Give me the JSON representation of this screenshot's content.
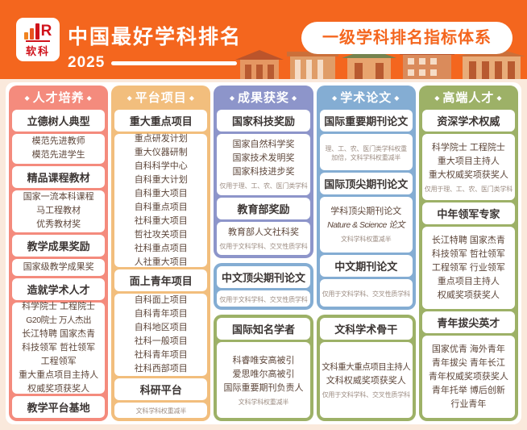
{
  "page": {
    "bg": "#FAE9DC",
    "panel_bg": "#FFFFFF"
  },
  "header": {
    "bg": "#F4661E",
    "accent": "#F4661E",
    "logo_brand": "软科",
    "logo_letter": "R",
    "title": "中国最好学科排名",
    "year": "2025",
    "badge": "一级学科排名指标体系"
  },
  "icons": {
    "diamond": "◆",
    "logo": "bar-chart-R-logo",
    "buildings": "campus-buildings-illustration"
  },
  "themes": {
    "salmon": "#F48B7D",
    "tan": "#F2BE7D",
    "purple": "#8D95CA",
    "blue": "#84ADD3",
    "green": "#9DB167"
  },
  "columns": [
    {
      "id": "talent-cultivation",
      "header": "人才培养",
      "groups": [
        {
          "theme": "salmon",
          "show_header": true,
          "sections": [
            {
              "header": "立德树人典型",
              "items": [
                "模范先进教师",
                "模范先进学生"
              ]
            },
            {
              "header": "精品课程教材",
              "items": [
                "国家一流本科课程",
                "马工程教材",
                "优秀教材奖"
              ]
            },
            {
              "header": "教学成果奖励",
              "items": [
                "国家级教学成果奖"
              ]
            },
            {
              "header": "造就学术人才",
              "items": [
                "科学院士 工程院士",
                "G20院士 万人杰出",
                "长江特聘 国家杰青",
                "科技领军 哲社领军",
                "工程领军",
                "重大重点项目主持人",
                "权威奖项获奖人"
              ]
            },
            {
              "header": "教学平台基地",
              "items": []
            }
          ]
        }
      ]
    },
    {
      "id": "platform-projects",
      "header": "平台项目",
      "groups": [
        {
          "theme": "tan",
          "show_header": true,
          "sections": [
            {
              "header": "重大重点项目",
              "items": [
                "重点研发计划",
                "重大仪器研制",
                "自科科学中心",
                "自科重大计划",
                "自科重大项目",
                "自科重点项目",
                "社科重大项目",
                "哲社攻关项目",
                "社科重点项目",
                "人社重大项目"
              ]
            },
            {
              "header": "面上青年项目",
              "items": [
                "自科面上项目",
                "自科青年项目",
                "自科地区项目",
                "社科一般项目",
                "社科青年项目",
                "社科西部项目"
              ]
            },
            {
              "header": "科研平台",
              "items": [],
              "note": "文科学科权重减半"
            }
          ]
        }
      ]
    },
    {
      "id": "achievement-awards",
      "header": "成果获奖",
      "groups": [
        {
          "theme": "purple",
          "show_header": true,
          "sections": [
            {
              "header": "国家科技奖励",
              "items": [
                "国家自然科学奖",
                "国家技术发明奖",
                "国家科技进步奖"
              ],
              "note": "仅用于理、工、农、医门类学科"
            },
            {
              "header": "教育部奖励",
              "items": [
                "教育部人文社科奖"
              ],
              "note": "仅用于文科学科、交叉性质学科"
            }
          ]
        },
        {
          "theme": "blue",
          "show_header": false,
          "sections": [
            {
              "header": "中文顶尖期刊论文",
              "items": [],
              "note": "仅用于文科学科、交叉性质学科"
            }
          ]
        },
        {
          "theme": "green",
          "show_header": false,
          "sections": [
            {
              "header": "国际知名学者",
              "items": [
                "科睿唯安高被引",
                "爱思唯尔高被引",
                "国际重要期刊负责人"
              ],
              "note": "文科学科权重减半"
            }
          ]
        }
      ]
    },
    {
      "id": "academic-papers",
      "header": "学术论文",
      "groups": [
        {
          "theme": "blue",
          "show_header": true,
          "sections": [
            {
              "header": "国际重要期刊论文",
              "items": [],
              "note": "理、工、农、医门类学科权重加倍，文科学科权重减半"
            },
            {
              "header": "国际顶尖期刊论文",
              "items": [
                "学科顶尖期刊论文",
                "Nature & Science 论文"
              ],
              "note": "文科学科权重减半"
            },
            {
              "header": "中文期刊论文",
              "items": [],
              "note": "仅用于文科学科、交叉性质学科"
            }
          ]
        },
        {
          "theme": "green",
          "show_header": false,
          "sections": [
            {
              "header": "文科学术骨干",
              "items": [
                "文科重大重点项目主持人",
                "文科权威奖项获奖人"
              ],
              "note": "仅用于文科学科、交叉性质学科"
            }
          ]
        }
      ]
    },
    {
      "id": "top-talent",
      "header": "高端人才",
      "groups": [
        {
          "theme": "green",
          "show_header": true,
          "sections": [
            {
              "header": "资深学术权威",
              "items": [
                "科学院士 工程院士",
                "重大项目主持人",
                "重大权威奖项获奖人"
              ],
              "note": "仅用于理、工、农、医门类学科"
            },
            {
              "header": "中年领军专家",
              "items": [
                "长江特聘 国家杰青",
                "科技领军 哲社领军",
                "工程领军 行业领军",
                "重点项目主持人",
                "权威奖项获奖人"
              ]
            },
            {
              "header": "青年拔尖英才",
              "items": [
                "国家优青 海外青年",
                "青年拔尖 青年长江",
                "青年权威奖项获奖人",
                "青年托举 博后创新",
                "行业青年"
              ]
            }
          ]
        }
      ]
    }
  ]
}
